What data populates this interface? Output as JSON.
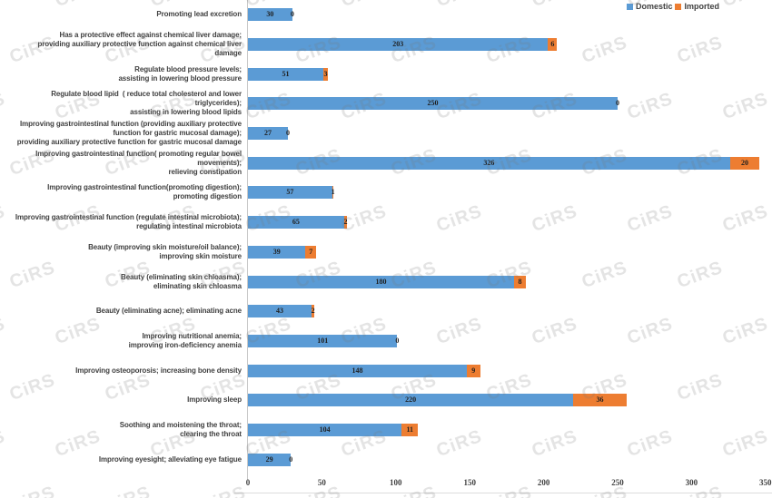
{
  "watermark": {
    "text": "CiRS"
  },
  "colors": {
    "domestic": "#5B9BD5",
    "imported": "#ED7D31",
    "label_text": "#3f3f3f",
    "value_text": "#1f1f1f",
    "axis_line": "#c9c9c9"
  },
  "chart_data": {
    "type": "bar",
    "orientation": "horizontal",
    "stacked": true,
    "title": "",
    "xlabel": "",
    "ylabel": "",
    "grid": false,
    "legend_position": "top-right",
    "xlim": [
      0,
      350
    ],
    "xticks": [
      0,
      50,
      100,
      150,
      200,
      250,
      300,
      350
    ],
    "categories": [
      "Promoting lead excretion",
      "Has a protective effect against chemical liver damage;\nproviding auxiliary protective function against chemical liver\ndamage",
      "Regulate blood pressure levels;\nassisting in lowering blood pressure",
      "Regulate blood lipid  ( reduce total cholesterol and lower\ntriglycerides);\nassisting in lowering blood lipids",
      "Improving gastrointestinal function (providing auxiliary protective\nfunction for gastric mucosal damage);\nproviding auxiliary protective function for gastric mucosal damage",
      "Improving gastrointestinal function( promoting regular bowel\nmovements);\nrelieving constipation",
      "Improving gastrointestinal function(promoting digestion);\npromoting digestion",
      "Improving gastrointestinal function (regulate intestinal microbiota);\nregulating intestinal microbiota",
      "Beauty (improving skin moisture/oil balance);\nimproving skin moisture",
      "Beauty (eliminating skin chloasma);\neliminating skin chloasma",
      "Beauty (eliminating acne); eliminating acne",
      "Improving nutritional anemia;\nimproving iron-deficiency anemia",
      "Improving osteoporosis; increasing bone density",
      "Improving sleep",
      "Soothing and moistening the throat;\nclearing the throat",
      "Improving eyesight; alleviating eye fatigue"
    ],
    "series": [
      {
        "name": "Domestic",
        "color": "#5B9BD5",
        "values": [
          30,
          203,
          51,
          250,
          27,
          326,
          57,
          65,
          39,
          180,
          43,
          101,
          148,
          220,
          104,
          29
        ]
      },
      {
        "name": "Imported",
        "color": "#ED7D31",
        "values": [
          0,
          6,
          3,
          0,
          0,
          20,
          1,
          2,
          7,
          8,
          2,
          0,
          9,
          36,
          11,
          0
        ]
      }
    ]
  }
}
